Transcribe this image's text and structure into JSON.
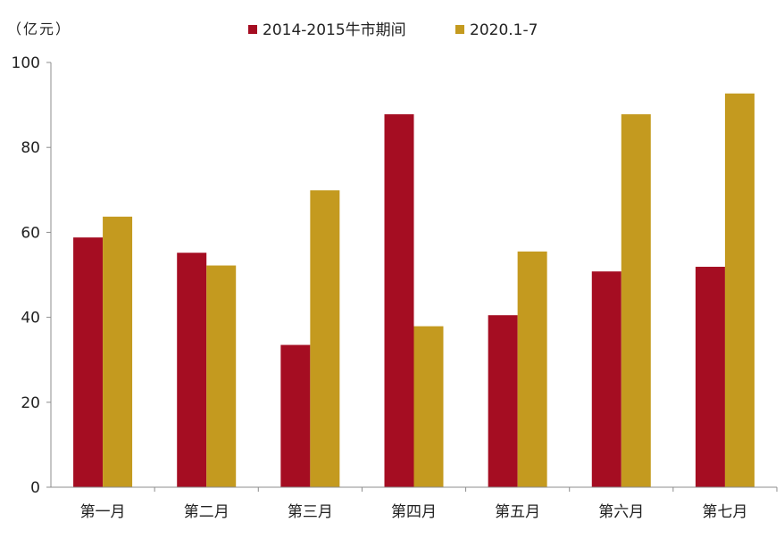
{
  "chart_data": {
    "type": "bar",
    "unit_label": "（亿元）",
    "categories": [
      "第一月",
      "第二月",
      "第三月",
      "第四月",
      "第五月",
      "第六月",
      "第七月"
    ],
    "series": [
      {
        "name": "2014-2015牛市期间",
        "color": "#A50D22",
        "values": [
          58.8,
          55.2,
          33.5,
          87.8,
          40.5,
          50.8,
          51.9
        ]
      },
      {
        "name": "2020.1-7",
        "color": "#C49A1F",
        "values": [
          63.7,
          52.2,
          69.9,
          37.9,
          55.5,
          87.8,
          92.7
        ]
      }
    ],
    "ylim": [
      0,
      100
    ],
    "yticks": [
      0,
      20,
      40,
      60,
      80,
      100
    ],
    "xlabel": "",
    "ylabel": "",
    "grid": false,
    "legend_position": "top-center"
  }
}
